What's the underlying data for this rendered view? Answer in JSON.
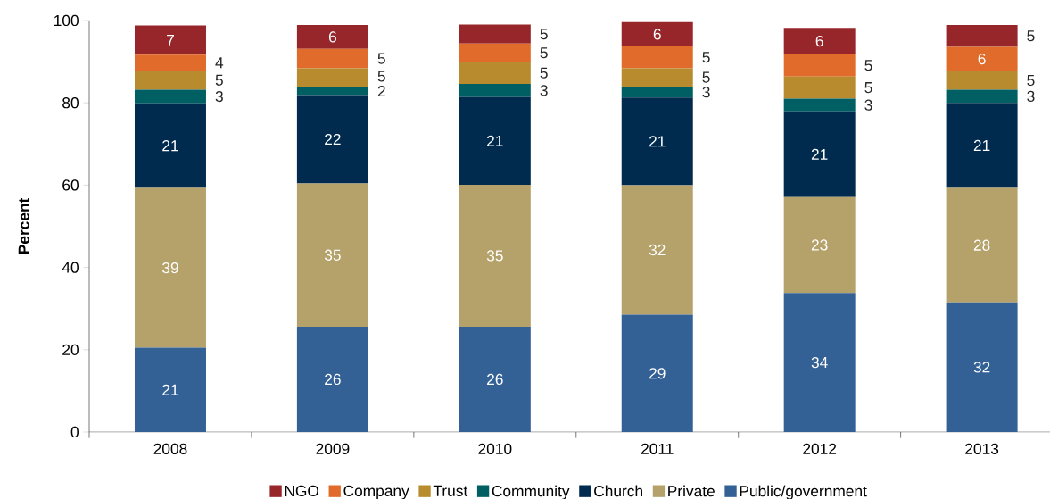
{
  "chart_data": {
    "type": "bar",
    "stacked": true,
    "ylabel": "Percent",
    "categories": [
      "2008",
      "2009",
      "2010",
      "2011",
      "2012",
      "2013"
    ],
    "ylim": [
      0,
      100
    ],
    "yticks": [
      0,
      20,
      40,
      60,
      80,
      100
    ],
    "legend": "bottom",
    "grid": false,
    "series": [
      {
        "name": "Public/government",
        "color": "#346195",
        "values": [
          20.5,
          25.6,
          25.6,
          28.5,
          33.8,
          31.5
        ],
        "value_labels": [
          "21",
          "26",
          "26",
          "29",
          "34",
          "32"
        ]
      },
      {
        "name": "Private",
        "color": "#b5a26a",
        "values": [
          38.8,
          34.8,
          34.5,
          31.5,
          23.3,
          27.8
        ],
        "value_labels": [
          "39",
          "35",
          "35",
          "32",
          "23",
          "28"
        ]
      },
      {
        "name": "Church",
        "color": "#002b4f",
        "values": [
          20.6,
          21.5,
          21.3,
          21.3,
          20.8,
          20.7
        ],
        "value_labels": [
          "21",
          "22",
          "21",
          "21",
          "21",
          "21"
        ]
      },
      {
        "name": "Community",
        "color": "#005f63",
        "values": [
          3.3,
          1.9,
          3.2,
          2.6,
          3.1,
          3.2
        ],
        "value_labels": [
          "3",
          "2",
          "3",
          "3",
          "3",
          "3"
        ]
      },
      {
        "name": "Trust",
        "color": "#b88c2e",
        "values": [
          4.6,
          4.6,
          5.3,
          4.5,
          5.4,
          4.5
        ],
        "value_labels": [
          "5",
          "5",
          "5",
          "5",
          "5",
          "5"
        ]
      },
      {
        "name": "Company",
        "color": "#e06b2a",
        "values": [
          3.9,
          4.7,
          4.5,
          5.3,
          5.4,
          5.9
        ],
        "value_labels": [
          "4",
          "5",
          "5",
          "5",
          "5",
          "6"
        ]
      },
      {
        "name": "NGO",
        "color": "#97262b",
        "values": [
          7.1,
          5.8,
          4.6,
          5.9,
          6.4,
          5.3
        ],
        "value_labels": [
          "7",
          "6",
          "5",
          "6",
          "6",
          "5"
        ]
      }
    ]
  }
}
